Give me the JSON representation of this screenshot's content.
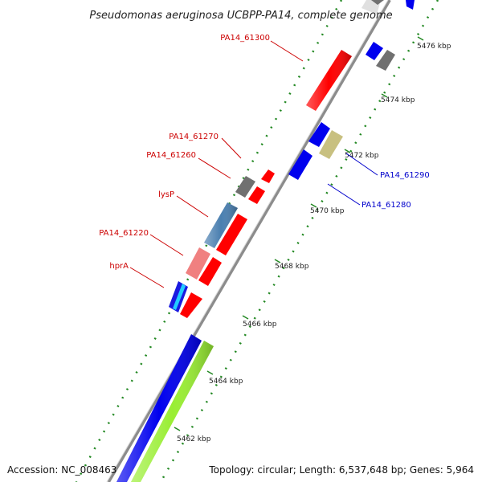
{
  "title": "Pseudomonas aeruginosa UCBPP-PA14, complete genome",
  "footer": {
    "accession": "Accession: NC_008463",
    "summary": "Topology: circular; Length: 6,537,648 bp; Genes: 5,964"
  },
  "kbp_ticks": [
    "5476 kbp",
    "5474 kbp",
    "5472 kbp",
    "5470 kbp",
    "5468 kbp",
    "5466 kbp",
    "5464 kbp",
    "5462 kbp"
  ],
  "gene_labels": {
    "red": [
      "PA14_61300",
      "PA14_61270",
      "PA14_61260",
      "lysP",
      "PA14_61220",
      "hprA"
    ],
    "blue": [
      "PA14_61290",
      "PA14_61280"
    ]
  },
  "colors": {
    "red_label": "#cc0000",
    "blue_label": "#0000cc",
    "forward_red": "#ff0000",
    "reverse_blue": "#0000ee",
    "lime": "#99ee33",
    "steel_blue": "#4a7fb0",
    "pink": "#f08080",
    "khaki": "#c8c080",
    "grey": "#707070",
    "tick_green": "#228822",
    "backbone": "#909090"
  }
}
